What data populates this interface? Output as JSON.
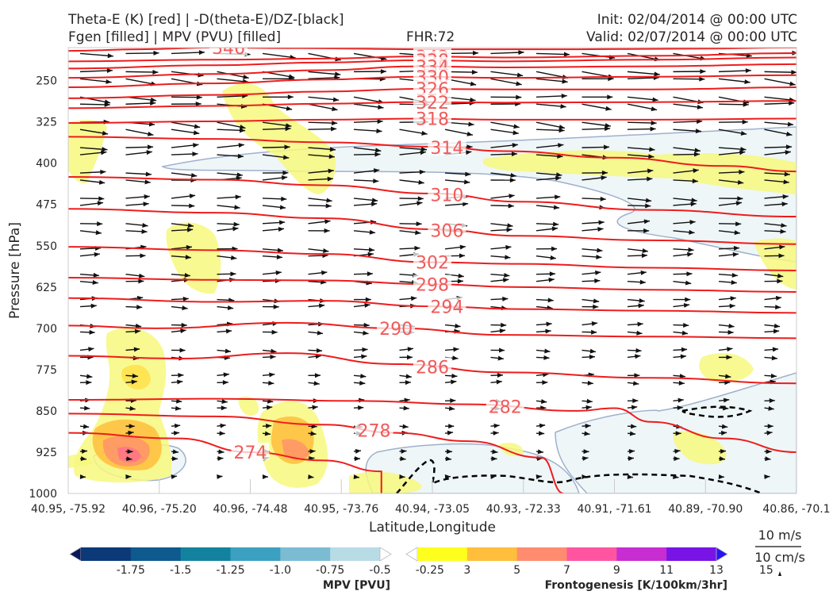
{
  "header": {
    "title_line1": "Theta-E (K) [red] | -D(theta-E)/DZ-[black]",
    "title_line2": "Fgen [filled] | MPV (PVU) [filled]",
    "fhr": "FHR:72",
    "init": "Init: 02/04/2014 @ 00:00 UTC",
    "valid": "Valid: 02/07/2014 @ 00:00 UTC"
  },
  "chart_data": {
    "type": "cross-section",
    "xlabel": "Latitude,Longitude",
    "ylabel": "Pressure [hPa]",
    "x_ticks": [
      "40.95, -75.92",
      "40.96, -75.20",
      "40.96, -74.48",
      "40.95, -73.76",
      "40.94, -73.05",
      "40.93, -72.33",
      "40.91, -71.61",
      "40.89, -70.90",
      "40.86, -70.1"
    ],
    "y_ticks": [
      250,
      325,
      400,
      475,
      550,
      625,
      700,
      775,
      850,
      925,
      1000
    ],
    "ylim": [
      1000,
      190
    ],
    "theta_e_contours": [
      {
        "label": "346",
        "points": [
          [
            0,
            196
          ],
          [
            0.1,
            193
          ],
          [
            0.2,
            190
          ],
          [
            0.3,
            191
          ],
          [
            0.5,
            193
          ],
          [
            0.7,
            193
          ],
          [
            0.85,
            192
          ],
          [
            1,
            190
          ]
        ]
      },
      {
        "label": "342",
        "points": [
          [
            0,
            215
          ],
          [
            0.2,
            212
          ],
          [
            0.35,
            210
          ],
          [
            0.48,
            206
          ],
          [
            0.6,
            208
          ],
          [
            0.8,
            205
          ],
          [
            1,
            200
          ]
        ]
      },
      {
        "label": "338",
        "points": [
          [
            0,
            228
          ],
          [
            0.2,
            222
          ],
          [
            0.35,
            217
          ],
          [
            0.48,
            213
          ],
          [
            0.6,
            215
          ],
          [
            0.8,
            212
          ],
          [
            1,
            208
          ]
        ]
      },
      {
        "label": "334",
        "points": [
          [
            0,
            245
          ],
          [
            0.2,
            238
          ],
          [
            0.35,
            231
          ],
          [
            0.48,
            224
          ],
          [
            0.6,
            226
          ],
          [
            0.8,
            224
          ],
          [
            1,
            220
          ]
        ]
      },
      {
        "label": "330",
        "points": [
          [
            0,
            262
          ],
          [
            0.2,
            255
          ],
          [
            0.35,
            248
          ],
          [
            0.48,
            243
          ],
          [
            0.6,
            245
          ],
          [
            0.8,
            243
          ],
          [
            1,
            240
          ]
        ]
      },
      {
        "label": "326",
        "points": [
          [
            0,
            282
          ],
          [
            0.2,
            276
          ],
          [
            0.35,
            270
          ],
          [
            0.48,
            265
          ],
          [
            0.6,
            266
          ],
          [
            0.8,
            266
          ],
          [
            1,
            262
          ]
        ]
      },
      {
        "label": "322",
        "points": [
          [
            0,
            300
          ],
          [
            0.2,
            296
          ],
          [
            0.35,
            292
          ],
          [
            0.48,
            289
          ],
          [
            0.6,
            290
          ],
          [
            0.8,
            289
          ],
          [
            1,
            287
          ]
        ]
      },
      {
        "label": "318",
        "points": [
          [
            0,
            327
          ],
          [
            0.2,
            324
          ],
          [
            0.35,
            321
          ],
          [
            0.48,
            319
          ],
          [
            0.6,
            321
          ],
          [
            0.8,
            321
          ],
          [
            1,
            319
          ]
        ]
      },
      {
        "label": "314",
        "points": [
          [
            0,
            352
          ],
          [
            0.2,
            356
          ],
          [
            0.35,
            362
          ],
          [
            0.5,
            370
          ],
          [
            0.6,
            378
          ],
          [
            0.75,
            390
          ],
          [
            0.9,
            405
          ],
          [
            1,
            415
          ]
        ]
      },
      {
        "label": "310",
        "points": [
          [
            0,
            425
          ],
          [
            0.2,
            430
          ],
          [
            0.35,
            440
          ],
          [
            0.5,
            455
          ],
          [
            0.62,
            470
          ],
          [
            0.8,
            485
          ],
          [
            1,
            497
          ]
        ]
      },
      {
        "label": "306",
        "points": [
          [
            0,
            483
          ],
          [
            0.2,
            490
          ],
          [
            0.35,
            500
          ],
          [
            0.5,
            520
          ],
          [
            0.62,
            532
          ],
          [
            0.8,
            540
          ],
          [
            1,
            547
          ]
        ]
      },
      {
        "label": "302",
        "points": [
          [
            0,
            552
          ],
          [
            0.2,
            558
          ],
          [
            0.35,
            565
          ],
          [
            0.5,
            580
          ],
          [
            0.62,
            583
          ],
          [
            0.8,
            590
          ],
          [
            1,
            595
          ]
        ]
      },
      {
        "label": "298",
        "points": [
          [
            0,
            608
          ],
          [
            0.2,
            612
          ],
          [
            0.35,
            613
          ],
          [
            0.5,
            620
          ],
          [
            0.62,
            625
          ],
          [
            0.8,
            630
          ],
          [
            1,
            634
          ]
        ]
      },
      {
        "label": "294",
        "points": [
          [
            0,
            645
          ],
          [
            0.2,
            652
          ],
          [
            0.35,
            650
          ],
          [
            0.5,
            660
          ],
          [
            0.62,
            665
          ],
          [
            0.8,
            668
          ],
          [
            1,
            672
          ]
        ]
      },
      {
        "label": "290",
        "points": [
          [
            0,
            695
          ],
          [
            0.12,
            700
          ],
          [
            0.3,
            690
          ],
          [
            0.45,
            700
          ],
          [
            0.6,
            712
          ],
          [
            0.8,
            715
          ],
          [
            1,
            718
          ]
        ]
      },
      {
        "label": "286",
        "points": [
          [
            0,
            750
          ],
          [
            0.15,
            755
          ],
          [
            0.3,
            745
          ],
          [
            0.45,
            765
          ],
          [
            0.6,
            780
          ],
          [
            0.8,
            790
          ],
          [
            1,
            800
          ]
        ]
      },
      {
        "label": "282",
        "points": [
          [
            0,
            830
          ],
          [
            0.2,
            828
          ],
          [
            0.4,
            832
          ],
          [
            0.55,
            838
          ],
          [
            0.7,
            850
          ],
          [
            0.75,
            845
          ],
          [
            0.8,
            870
          ],
          [
            0.9,
            900
          ],
          [
            1,
            925
          ]
        ]
      },
      {
        "label": "278",
        "points": [
          [
            0,
            855
          ],
          [
            0.2,
            860
          ],
          [
            0.35,
            875
          ],
          [
            0.45,
            890
          ],
          [
            0.55,
            905
          ],
          [
            0.65,
            935
          ],
          [
            0.68,
            1000
          ]
        ]
      },
      {
        "label": "274",
        "points": [
          [
            0,
            890
          ],
          [
            0.15,
            900
          ],
          [
            0.25,
            925
          ],
          [
            0.35,
            940
          ],
          [
            0.43,
            960
          ],
          [
            0.43,
            1000
          ]
        ]
      }
    ],
    "mpv_colorbar": {
      "label": "MPV [PVU]",
      "ticks": [
        "-1.75",
        "-1.5",
        "-1.25",
        "-1.0",
        "-0.75",
        "-0.5",
        "-0.25"
      ],
      "colors": [
        "#08185c",
        "#0c3a78",
        "#0e5a8e",
        "#13829f",
        "#3ca0c0",
        "#7bbcd3",
        "#b7dce6",
        "#ffffff"
      ]
    },
    "fgen_colorbar": {
      "label": "Frontogenesis [K/100km/3hr]",
      "ticks": [
        "3",
        "5",
        "7",
        "9",
        "11",
        "13",
        "15"
      ],
      "colors": [
        "#ffffff",
        "#ffff1e",
        "#ffbe3c",
        "#ff8c6e",
        "#ff55a0",
        "#c82dd2",
        "#7814e6",
        "#2814f0"
      ]
    },
    "reference_vectors": {
      "speed": "10 m/s",
      "vertical": "10 cm/s"
    },
    "colors": {
      "theta_e": "#ee1c1c",
      "theta_e_label": "#f05a5a",
      "mpv_outline": "#9fb0cc",
      "mpv_fill": "#eef6f8",
      "fgen_fill": "#f7f87e",
      "vectors": "#111111"
    }
  }
}
